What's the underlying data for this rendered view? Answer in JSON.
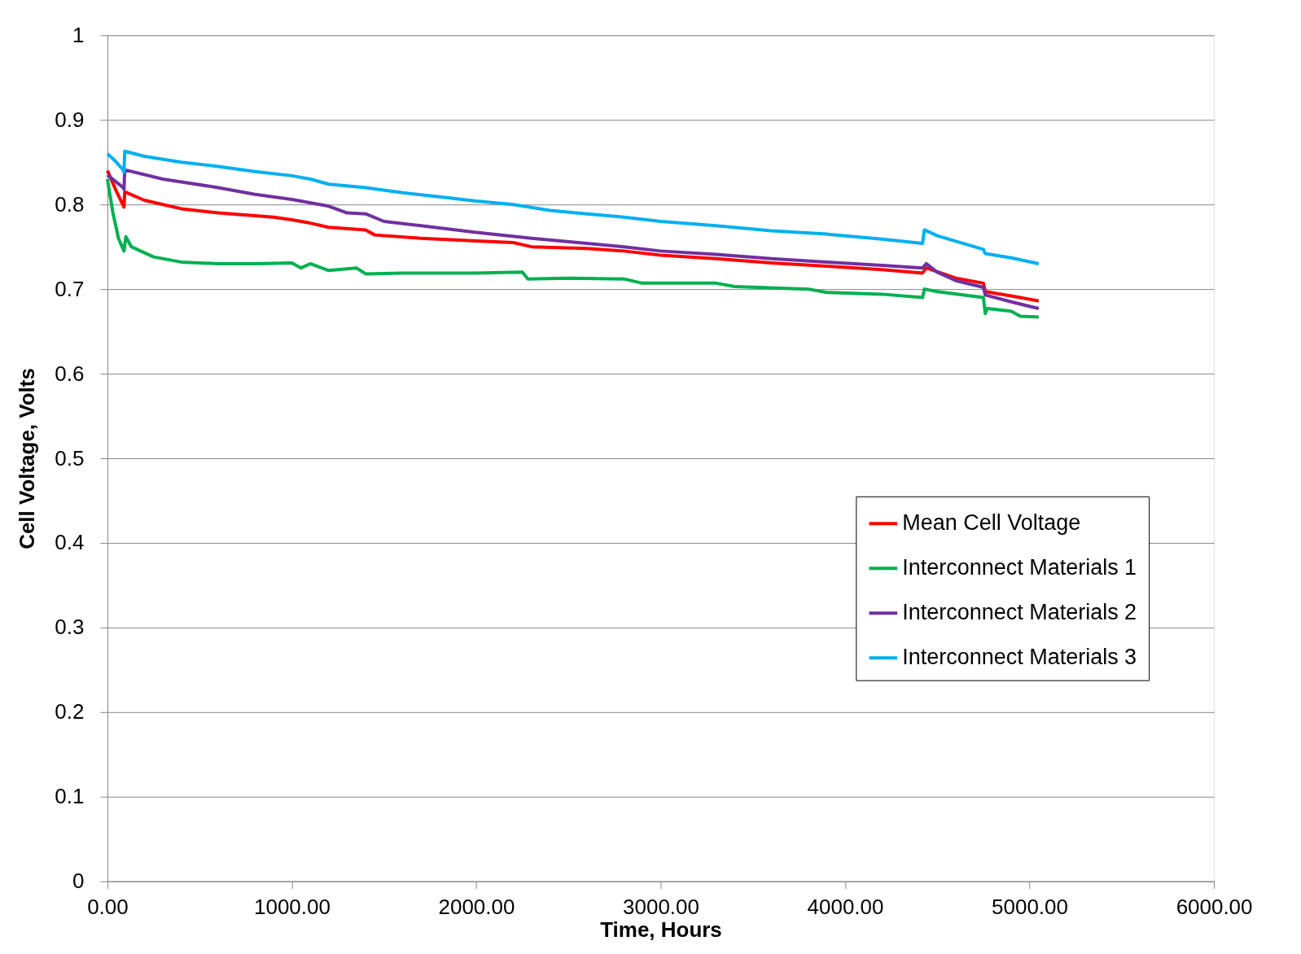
{
  "chart_data": {
    "type": "line",
    "xlabel": "Time, Hours",
    "ylabel": "Cell Voltage, Volts",
    "xlim": [
      0,
      6000
    ],
    "xticks": [
      {
        "value": 0,
        "label": "0.00"
      },
      {
        "value": 1000,
        "label": "1000.00"
      },
      {
        "value": 2000,
        "label": "2000.00"
      },
      {
        "value": 3000,
        "label": "3000.00"
      },
      {
        "value": 4000,
        "label": "4000.00"
      },
      {
        "value": 5000,
        "label": "5000.00"
      },
      {
        "value": 6000,
        "label": "6000.00"
      }
    ],
    "ylim": [
      0,
      1
    ],
    "yticks": [
      0,
      0.1,
      0.2,
      0.3,
      0.4,
      0.5,
      0.6,
      0.7,
      0.8,
      0.9,
      1
    ],
    "grid": "y",
    "legend": "right",
    "marker": "none",
    "line_style": "solid",
    "series": [
      {
        "name": "Mean Cell Voltage",
        "color": "#ff0000",
        "x": [
          0,
          50,
          90,
          94,
          200,
          400,
          600,
          900,
          1000,
          1100,
          1200,
          1400,
          1450,
          1700,
          2000,
          2200,
          2300,
          2600,
          2800,
          3000,
          3300,
          3600,
          3900,
          4200,
          4420,
          4440,
          4600,
          4750,
          4760,
          4900,
          5050
        ],
        "values": [
          0.84,
          0.815,
          0.797,
          0.815,
          0.805,
          0.795,
          0.79,
          0.785,
          0.782,
          0.778,
          0.773,
          0.77,
          0.764,
          0.76,
          0.757,
          0.755,
          0.75,
          0.748,
          0.745,
          0.74,
          0.736,
          0.731,
          0.727,
          0.723,
          0.719,
          0.725,
          0.713,
          0.707,
          0.697,
          0.692,
          0.686
        ]
      },
      {
        "name": "Interconnect Materials 1",
        "color": "#00b050",
        "x": [
          0,
          30,
          60,
          90,
          100,
          130,
          250,
          400,
          600,
          800,
          1000,
          1050,
          1100,
          1200,
          1350,
          1400,
          1600,
          2000,
          2250,
          2280,
          2500,
          2800,
          2900,
          3300,
          3400,
          3800,
          3900,
          4200,
          4420,
          4430,
          4500,
          4750,
          4760,
          4770,
          4900,
          4950,
          5050
        ],
        "values": [
          0.83,
          0.79,
          0.76,
          0.745,
          0.762,
          0.75,
          0.738,
          0.732,
          0.73,
          0.73,
          0.731,
          0.725,
          0.73,
          0.722,
          0.725,
          0.718,
          0.719,
          0.719,
          0.72,
          0.712,
          0.713,
          0.712,
          0.707,
          0.707,
          0.703,
          0.7,
          0.696,
          0.694,
          0.69,
          0.7,
          0.697,
          0.69,
          0.671,
          0.677,
          0.674,
          0.668,
          0.667
        ]
      },
      {
        "name": "Interconnect Materials 2",
        "color": "#7030a0",
        "x": [
          0,
          85,
          90,
          94,
          300,
          600,
          800,
          1000,
          1200,
          1300,
          1400,
          1500,
          1700,
          2000,
          2300,
          2600,
          2800,
          3000,
          3300,
          3600,
          3900,
          4200,
          4420,
          4440,
          4500,
          4600,
          4750,
          4760,
          4900,
          5050
        ],
        "values": [
          0.835,
          0.82,
          0.818,
          0.841,
          0.83,
          0.82,
          0.812,
          0.806,
          0.798,
          0.79,
          0.789,
          0.78,
          0.775,
          0.767,
          0.76,
          0.754,
          0.75,
          0.745,
          0.741,
          0.736,
          0.732,
          0.728,
          0.725,
          0.73,
          0.72,
          0.71,
          0.702,
          0.693,
          0.685,
          0.677
        ]
      },
      {
        "name": "Interconnect Materials 3",
        "color": "#00b0f0",
        "x": [
          0,
          40,
          85,
          90,
          94,
          200,
          400,
          600,
          800,
          1000,
          1100,
          1200,
          1400,
          1600,
          1800,
          2000,
          2200,
          2400,
          2600,
          2800,
          3000,
          3300,
          3600,
          3900,
          4200,
          4420,
          4430,
          4500,
          4750,
          4760,
          4900,
          5050
        ],
        "values": [
          0.86,
          0.852,
          0.841,
          0.838,
          0.863,
          0.857,
          0.85,
          0.845,
          0.839,
          0.834,
          0.83,
          0.824,
          0.82,
          0.814,
          0.809,
          0.804,
          0.8,
          0.793,
          0.789,
          0.785,
          0.78,
          0.775,
          0.769,
          0.765,
          0.759,
          0.754,
          0.77,
          0.763,
          0.747,
          0.742,
          0.737,
          0.73
        ]
      }
    ]
  }
}
